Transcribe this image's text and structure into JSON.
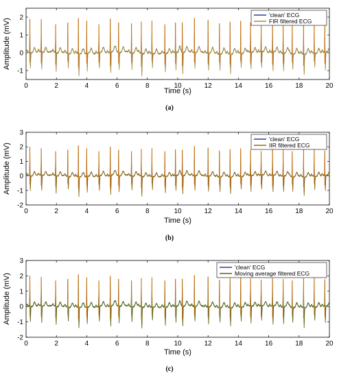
{
  "colors": {
    "clean": "#2b3f9f",
    "fir": "#a68b3a",
    "iir": "#8f6a10",
    "moving_average": "#556b10",
    "spike": "#c8700f",
    "axes": "#000000",
    "background": "#ffffff"
  },
  "chart_data": [
    {
      "type": "line",
      "caption": "(a)",
      "xlabel": "Time (s)",
      "ylabel": "Amplitude (mV)",
      "xlim": [
        0,
        20
      ],
      "ylim": [
        -1.5,
        2.5
      ],
      "xticks": [
        0,
        2,
        4,
        6,
        8,
        10,
        12,
        14,
        16,
        18,
        20
      ],
      "yticks": [
        -1,
        0,
        1,
        2
      ],
      "grid": false,
      "legend_position": "top-right",
      "beats": [
        0.25,
        1.0,
        1.95,
        2.75,
        3.45,
        4.0,
        4.8,
        5.55,
        6.1,
        6.95,
        7.6,
        8.3,
        9.15,
        9.85,
        10.3,
        11.1,
        12.0,
        12.75,
        13.45,
        14.15,
        14.8,
        15.5,
        16.25,
        16.95,
        17.55,
        18.3,
        19.0,
        19.7
      ],
      "r_peaks": [
        1.9,
        1.85,
        1.6,
        1.7,
        1.95,
        1.8,
        1.6,
        1.9,
        1.7,
        1.65,
        1.75,
        1.8,
        1.6,
        1.7,
        1.7,
        1.95,
        1.85,
        1.65,
        1.75,
        1.8,
        1.7,
        1.6,
        1.75,
        1.7,
        1.6,
        1.75,
        1.8,
        1.65
      ],
      "troughs": [
        -0.9,
        -1.0,
        -1.1,
        -0.8,
        -1.3,
        -1.0,
        -0.9,
        -1.2,
        -1.0,
        -0.9,
        -1.3,
        -0.8,
        -1.1,
        -1.0,
        -1.2,
        -0.9,
        -1.0,
        -0.9,
        -1.1,
        -0.8,
        -1.0,
        -0.9,
        -1.1,
        -1.0,
        -0.9,
        -1.2,
        -0.8,
        -1.0
      ],
      "series": [
        {
          "name": "'clean' ECG",
          "color_key": "clean"
        },
        {
          "name": "FIR filtered ECG",
          "color_key": "fir"
        }
      ]
    },
    {
      "type": "line",
      "caption": "(b)",
      "xlabel": "Time (s)",
      "ylabel": "Amplitude (mV)",
      "xlim": [
        0,
        20
      ],
      "ylim": [
        -2,
        3
      ],
      "xticks": [
        0,
        2,
        4,
        6,
        8,
        10,
        12,
        14,
        16,
        18,
        20
      ],
      "yticks": [
        -2,
        -1,
        0,
        1,
        2,
        3
      ],
      "grid": false,
      "legend_position": "top-right",
      "beats": [
        0.25,
        1.0,
        1.95,
        2.75,
        3.45,
        4.0,
        4.8,
        5.55,
        6.1,
        6.95,
        7.6,
        8.3,
        9.15,
        9.85,
        10.3,
        11.1,
        12.0,
        12.75,
        13.45,
        14.15,
        14.8,
        15.5,
        16.25,
        16.95,
        17.55,
        18.3,
        19.0,
        19.7
      ],
      "r_peaks": [
        2.0,
        1.9,
        1.7,
        1.8,
        2.1,
        1.9,
        1.7,
        2.0,
        1.8,
        1.7,
        1.85,
        1.9,
        1.7,
        1.8,
        1.8,
        2.05,
        1.95,
        1.75,
        1.85,
        1.9,
        1.8,
        1.7,
        1.85,
        1.8,
        1.7,
        1.85,
        1.9,
        1.75
      ],
      "troughs": [
        -1.0,
        -1.1,
        -1.2,
        -0.9,
        -1.4,
        -1.1,
        -1.0,
        -1.3,
        -1.1,
        -1.0,
        -1.4,
        -0.9,
        -1.2,
        -1.1,
        -1.3,
        -1.0,
        -1.1,
        -1.0,
        -1.2,
        -0.9,
        -1.1,
        -1.0,
        -1.2,
        -1.1,
        -1.0,
        -1.3,
        -0.9,
        -1.1
      ],
      "series": [
        {
          "name": "'clean' ECG",
          "color_key": "clean"
        },
        {
          "name": "IIR filtered ECG",
          "color_key": "iir"
        }
      ]
    },
    {
      "type": "line",
      "caption": "(c)",
      "xlabel": "Time (s)",
      "ylabel": "Amplitude (mV)",
      "xlim": [
        0,
        20
      ],
      "ylim": [
        -2,
        3
      ],
      "xticks": [
        0,
        2,
        4,
        6,
        8,
        10,
        12,
        14,
        16,
        18,
        20
      ],
      "yticks": [
        -2,
        -1,
        0,
        1,
        2,
        3
      ],
      "grid": false,
      "legend_position": "top-right",
      "beats": [
        0.25,
        1.0,
        1.95,
        2.75,
        3.45,
        4.0,
        4.8,
        5.55,
        6.1,
        6.95,
        7.6,
        8.3,
        9.15,
        9.85,
        10.3,
        11.1,
        12.0,
        12.75,
        13.45,
        14.15,
        14.8,
        15.5,
        16.25,
        16.95,
        17.55,
        18.3,
        19.0,
        19.7
      ],
      "r_peaks": [
        2.0,
        1.9,
        1.7,
        1.8,
        2.1,
        1.9,
        1.7,
        2.0,
        1.8,
        1.7,
        1.85,
        1.9,
        1.7,
        1.8,
        1.8,
        2.05,
        1.95,
        1.75,
        1.85,
        1.9,
        1.8,
        1.7,
        1.85,
        1.8,
        1.7,
        1.85,
        1.9,
        1.75
      ],
      "troughs": [
        -1.0,
        -1.1,
        -1.2,
        -0.9,
        -1.4,
        -1.1,
        -1.0,
        -1.3,
        -1.1,
        -1.0,
        -1.4,
        -0.9,
        -1.2,
        -1.1,
        -1.3,
        -1.0,
        -1.1,
        -1.0,
        -1.2,
        -0.9,
        -1.1,
        -1.0,
        -1.2,
        -1.1,
        -1.0,
        -1.3,
        -0.9,
        -1.1
      ],
      "series": [
        {
          "name": "'clean' ECG",
          "color_key": "clean"
        },
        {
          "name": "Moving average filtered ECG",
          "color_key": "moving_average"
        }
      ]
    }
  ]
}
